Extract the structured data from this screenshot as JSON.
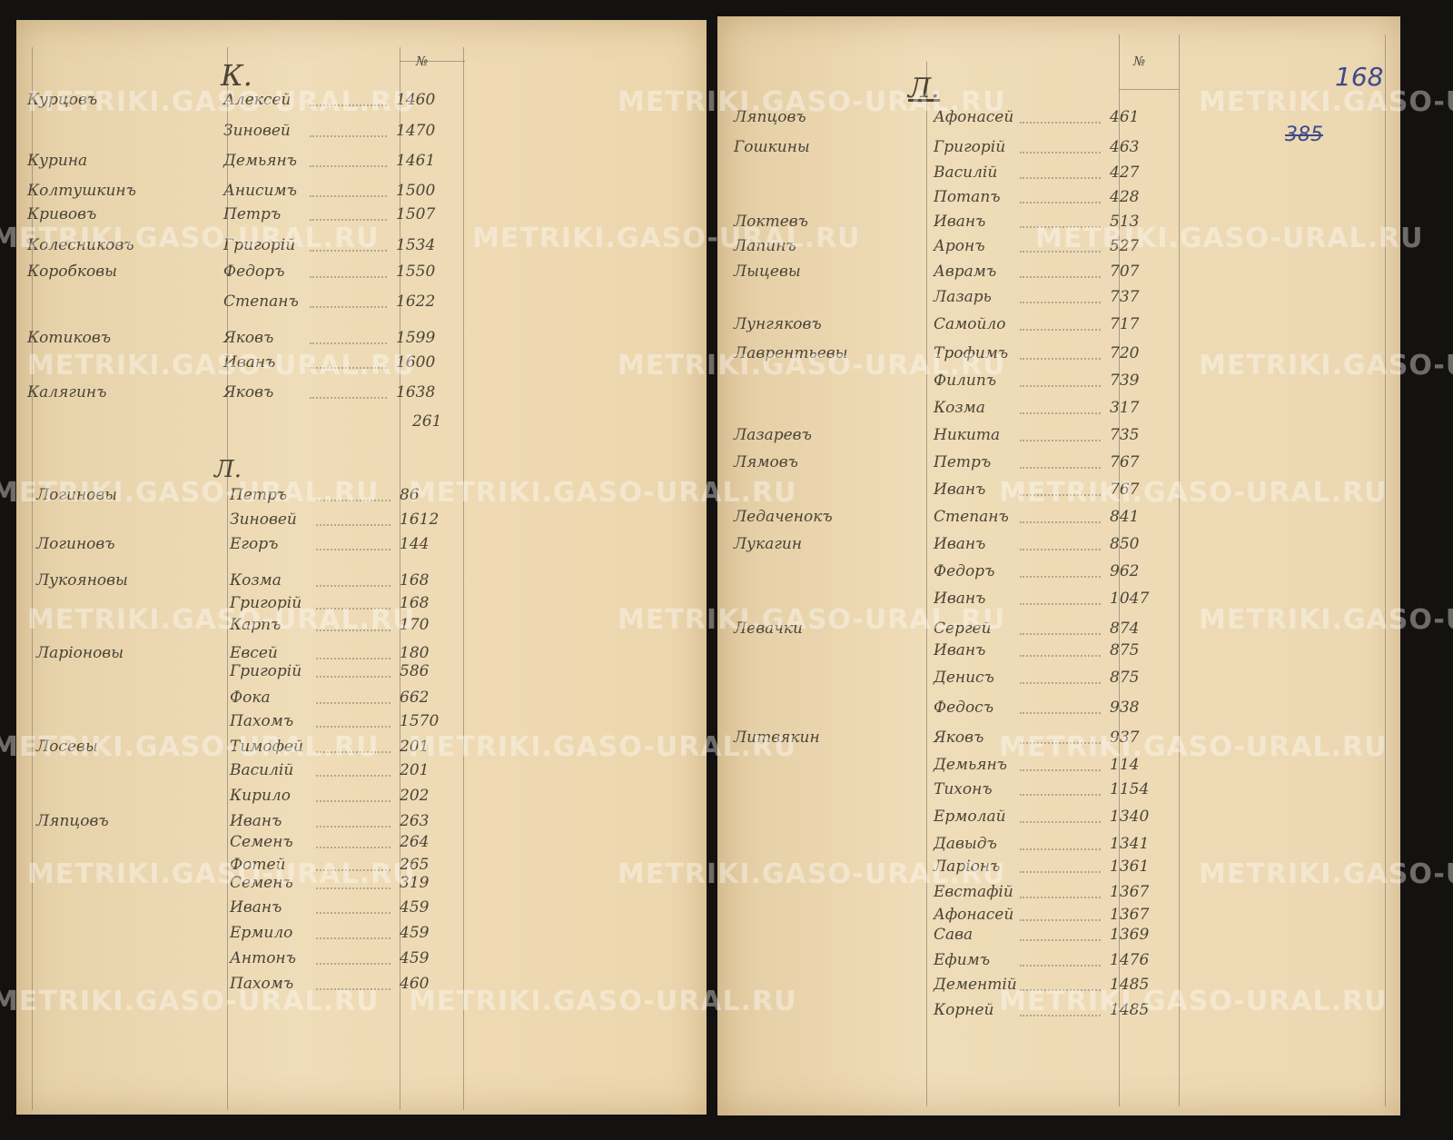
{
  "left_page": {
    "letter_k": "К.",
    "letter_l": "Л.",
    "number_header": "№",
    "section_k": [
      {
        "surname": "Курцовъ",
        "name": "Алексей",
        "no": "1460"
      },
      {
        "surname": "",
        "name": "Зиновей",
        "no": "1470"
      },
      {
        "surname": "Курина",
        "name": "Демьянъ",
        "no": "1461"
      },
      {
        "surname": "Колтушкинъ",
        "name": "Анисимъ",
        "no": "1500"
      },
      {
        "surname": "Кривовъ",
        "name": "Петръ",
        "no": "1507"
      },
      {
        "surname": "Колесниковъ",
        "name": "Григорій",
        "no": "1534"
      },
      {
        "surname": "Коробковы",
        "name": "Федоръ",
        "no": "1550"
      },
      {
        "surname": "",
        "name": "Степанъ",
        "no": "1622"
      },
      {
        "surname": "Котиковъ",
        "name": "Яковъ",
        "no": "1599"
      },
      {
        "surname": "",
        "name": "Иванъ",
        "no": "1600"
      },
      {
        "surname": "Калягинъ",
        "name": "Яковъ",
        "no": "1638"
      }
    ],
    "total": "261",
    "section_l": [
      {
        "surname": "Логиновы",
        "name": "Петръ",
        "no": "86"
      },
      {
        "surname": "",
        "name": "Зиновей",
        "no": "1612"
      },
      {
        "surname": "Логиновъ",
        "name": "Егоръ",
        "no": "144"
      },
      {
        "surname": "Лукояновы",
        "name": "Козма",
        "no": "168"
      },
      {
        "surname": "",
        "name": "Григорій",
        "no": "168"
      },
      {
        "surname": "",
        "name": "Карпъ",
        "no": "170"
      },
      {
        "surname": "Ларіоновы",
        "name": "Евсей",
        "no": "180"
      },
      {
        "surname": "",
        "name": "Григорій",
        "no": "586"
      },
      {
        "surname": "",
        "name": "Фока",
        "no": "662"
      },
      {
        "surname": "",
        "name": "Пахомъ",
        "no": "1570"
      },
      {
        "surname": "Лосевы",
        "name": "Тимофей",
        "no": "201"
      },
      {
        "surname": "",
        "name": "Василій",
        "no": "201"
      },
      {
        "surname": "",
        "name": "Кирило",
        "no": "202"
      },
      {
        "surname": "Ляпцовъ",
        "name": "Иванъ",
        "no": "263"
      },
      {
        "surname": "",
        "name": "Семенъ",
        "no": "264"
      },
      {
        "surname": "",
        "name": "Фотей",
        "no": "265"
      },
      {
        "surname": "",
        "name": "Семенъ",
        "no": "319"
      },
      {
        "surname": "",
        "name": "Иванъ",
        "no": "459"
      },
      {
        "surname": "",
        "name": "Ермило",
        "no": "459"
      },
      {
        "surname": "",
        "name": "Антонъ",
        "no": "459"
      },
      {
        "surname": "",
        "name": "Пахомъ",
        "no": "460"
      }
    ]
  },
  "right_page": {
    "letter_l": "Л.",
    "number_header": "№",
    "folio_stamp": "168",
    "folio_old": "385",
    "entries": [
      {
        "surname": "Ляпцовъ",
        "name": "Афонасей",
        "no": "461"
      },
      {
        "surname": "Гошкины",
        "name": "Григорій",
        "no": "463"
      },
      {
        "surname": "",
        "name": "Василій",
        "no": "427"
      },
      {
        "surname": "",
        "name": "Потапъ",
        "no": "428"
      },
      {
        "surname": "Локтевъ",
        "name": "Иванъ",
        "no": "513"
      },
      {
        "surname": "Лапинъ",
        "name": "Аронъ",
        "no": "527"
      },
      {
        "surname": "Лыцевы",
        "name": "Аврамъ",
        "no": "707"
      },
      {
        "surname": "",
        "name": "Лазарь",
        "no": "737"
      },
      {
        "surname": "Лунгяковъ",
        "name": "Самойло",
        "no": "717"
      },
      {
        "surname": "Лаврентьевы",
        "name": "Трофимъ",
        "no": "720"
      },
      {
        "surname": "",
        "name": "Филипъ",
        "no": "739"
      },
      {
        "surname": "",
        "name": "Козма",
        "no": "317"
      },
      {
        "surname": "Лазаревъ",
        "name": "Никита",
        "no": "735"
      },
      {
        "surname": "Лямовъ",
        "name": "Петръ",
        "no": "767"
      },
      {
        "surname": "",
        "name": "Иванъ",
        "no": "767"
      },
      {
        "surname": "Ледаченокъ",
        "name": "Степанъ",
        "no": "841"
      },
      {
        "surname": "Лукагин",
        "name": "Иванъ",
        "no": "850"
      },
      {
        "surname": "",
        "name": "Федоръ",
        "no": "962"
      },
      {
        "surname": "",
        "name": "Иванъ",
        "no": "1047"
      },
      {
        "surname": "Левачки",
        "name": "Сергей",
        "no": "874"
      },
      {
        "surname": "",
        "name": "Иванъ",
        "no": "875"
      },
      {
        "surname": "",
        "name": "Денисъ",
        "no": "875"
      },
      {
        "surname": "",
        "name": "Федосъ",
        "no": "938"
      },
      {
        "surname": "Литвякин",
        "name": "Яковъ",
        "no": "937"
      },
      {
        "surname": "",
        "name": "Демьянъ",
        "no": "114"
      },
      {
        "surname": "",
        "name": "Тихонъ",
        "no": "1154"
      },
      {
        "surname": "",
        "name": "Ермолай",
        "no": "1340"
      },
      {
        "surname": "",
        "name": "Давыдъ",
        "no": "1341"
      },
      {
        "surname": "",
        "name": "Ларіонъ",
        "no": "1361"
      },
      {
        "surname": "",
        "name": "Евстафій",
        "no": "1367"
      },
      {
        "surname": "",
        "name": "Афонасей",
        "no": "1367"
      },
      {
        "surname": "",
        "name": "Сава",
        "no": "1369"
      },
      {
        "surname": "",
        "name": "Ефимъ",
        "no": "1476"
      },
      {
        "surname": "",
        "name": "Дементій",
        "no": "1485"
      },
      {
        "surname": "",
        "name": "Корней",
        "no": "1485"
      }
    ]
  },
  "watermark": "METRIKI.GASO-URAL.RU",
  "colors": {
    "paper": "#ecd9b4",
    "ink": "#4a4438",
    "stamp": "#3d4a8a",
    "background": "#141210"
  }
}
